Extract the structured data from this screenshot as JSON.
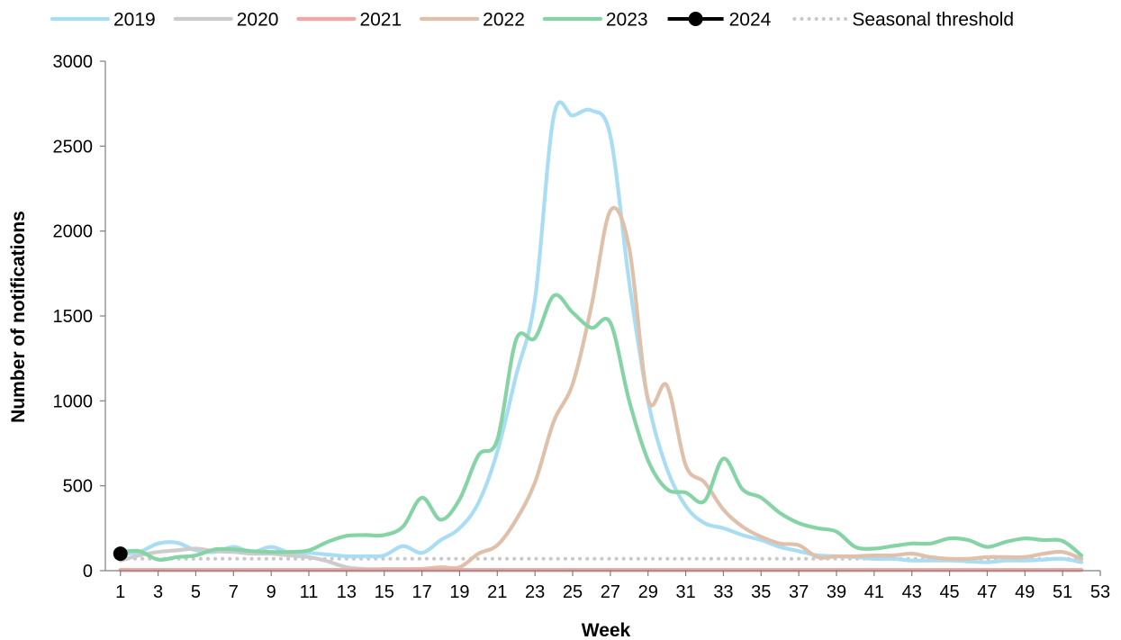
{
  "chart_data": {
    "type": "line",
    "xlabel": "Week",
    "ylabel": "Number of notifications",
    "xlim": [
      0.2,
      53
    ],
    "ylim": [
      0,
      3000
    ],
    "x_ticks": [
      1,
      3,
      5,
      7,
      9,
      11,
      13,
      15,
      17,
      19,
      21,
      23,
      25,
      27,
      29,
      31,
      33,
      35,
      37,
      39,
      41,
      43,
      45,
      47,
      49,
      51,
      53
    ],
    "y_ticks": [
      0,
      500,
      1000,
      1500,
      2000,
      2500,
      3000
    ],
    "grid": false,
    "legend_position": "top",
    "series": [
      {
        "name": "2019",
        "color": "#a9ddf3",
        "style": "solid",
        "weeks": [
          1,
          2,
          3,
          4,
          5,
          6,
          7,
          8,
          9,
          10,
          11,
          12,
          13,
          14,
          15,
          16,
          17,
          18,
          19,
          20,
          21,
          22,
          23,
          24,
          25,
          26,
          27,
          28,
          29,
          30,
          31,
          32,
          33,
          34,
          35,
          36,
          37,
          38,
          39,
          40,
          41,
          42,
          43,
          44,
          45,
          46,
          47,
          48,
          49,
          50,
          51,
          52
        ],
        "values": [
          100,
          110,
          160,
          165,
          120,
          110,
          140,
          110,
          140,
          105,
          105,
          95,
          85,
          85,
          90,
          145,
          105,
          180,
          250,
          400,
          700,
          1150,
          1600,
          2680,
          2680,
          2710,
          2560,
          1700,
          1000,
          600,
          380,
          280,
          250,
          210,
          180,
          140,
          115,
          90,
          85,
          80,
          70,
          70,
          60,
          60,
          60,
          55,
          50,
          60,
          60,
          65,
          70,
          50
        ]
      },
      {
        "name": "2020",
        "color": "#cccccc",
        "style": "solid",
        "weeks": [
          1,
          2,
          3,
          4,
          5,
          6,
          7,
          8,
          9,
          10,
          11,
          12,
          13,
          14,
          15,
          16,
          17,
          18,
          19,
          20,
          21,
          22,
          23,
          24,
          25,
          26,
          27,
          28,
          29,
          30,
          31,
          32,
          33,
          34,
          35,
          36,
          37,
          38,
          39,
          40,
          41,
          42,
          43,
          44,
          45,
          46,
          47,
          48,
          49,
          50,
          51,
          52
        ],
        "values": [
          60,
          90,
          110,
          120,
          130,
          115,
          110,
          100,
          100,
          90,
          80,
          55,
          20,
          10,
          10,
          10,
          10,
          5,
          5,
          5,
          5,
          5,
          5,
          5,
          5,
          5,
          5,
          5,
          5,
          5,
          5,
          5,
          5,
          5,
          5,
          5,
          5,
          5,
          5,
          5,
          5,
          5,
          5,
          5,
          5,
          5,
          5,
          5,
          5,
          5,
          5,
          5
        ]
      },
      {
        "name": "2021",
        "color": "#f4a5a5",
        "style": "solid",
        "weeks": [
          1,
          2,
          3,
          4,
          5,
          6,
          7,
          8,
          9,
          10,
          11,
          12,
          13,
          14,
          15,
          16,
          17,
          18,
          19,
          20,
          21,
          22,
          23,
          24,
          25,
          26,
          27,
          28,
          29,
          30,
          31,
          32,
          33,
          34,
          35,
          36,
          37,
          38,
          39,
          40,
          41,
          42,
          43,
          44,
          45,
          46,
          47,
          48,
          49,
          50,
          51,
          52
        ],
        "values": [
          3,
          3,
          3,
          3,
          3,
          3,
          3,
          3,
          3,
          3,
          3,
          3,
          3,
          3,
          3,
          3,
          3,
          3,
          3,
          3,
          3,
          3,
          3,
          3,
          3,
          3,
          3,
          3,
          3,
          3,
          3,
          3,
          3,
          3,
          3,
          3,
          3,
          3,
          3,
          3,
          3,
          3,
          3,
          3,
          3,
          3,
          3,
          3,
          3,
          3,
          3,
          3
        ]
      },
      {
        "name": "2022",
        "color": "#dfc0aa",
        "style": "solid",
        "weeks": [
          1,
          2,
          3,
          4,
          5,
          6,
          7,
          8,
          9,
          10,
          11,
          12,
          13,
          14,
          15,
          16,
          17,
          18,
          19,
          20,
          21,
          22,
          23,
          24,
          25,
          26,
          27,
          28,
          29,
          30,
          31,
          32,
          33,
          34,
          35,
          36,
          37,
          38,
          39,
          40,
          41,
          42,
          43,
          44,
          45,
          46,
          47,
          48,
          49,
          50,
          51,
          52
        ],
        "values": [
          5,
          5,
          5,
          5,
          5,
          5,
          5,
          5,
          5,
          5,
          5,
          5,
          5,
          5,
          5,
          5,
          10,
          20,
          20,
          100,
          150,
          300,
          520,
          880,
          1100,
          1560,
          2120,
          1900,
          1010,
          1090,
          620,
          520,
          360,
          260,
          200,
          160,
          150,
          80,
          85,
          85,
          90,
          90,
          100,
          80,
          70,
          70,
          80,
          80,
          80,
          100,
          110,
          70
        ]
      },
      {
        "name": "2023",
        "color": "#86d4a6",
        "style": "solid",
        "weeks": [
          1,
          2,
          3,
          4,
          5,
          6,
          7,
          8,
          9,
          10,
          11,
          12,
          13,
          14,
          15,
          16,
          17,
          18,
          19,
          20,
          21,
          22,
          23,
          24,
          25,
          26,
          27,
          28,
          29,
          30,
          31,
          32,
          33,
          34,
          35,
          36,
          37,
          38,
          39,
          40,
          41,
          42,
          43,
          44,
          45,
          46,
          47,
          48,
          49,
          50,
          51,
          52
        ],
        "values": [
          110,
          115,
          65,
          80,
          90,
          125,
          125,
          115,
          110,
          110,
          120,
          170,
          205,
          210,
          210,
          260,
          430,
          300,
          420,
          680,
          770,
          1360,
          1370,
          1620,
          1520,
          1430,
          1460,
          1000,
          650,
          480,
          460,
          410,
          660,
          480,
          430,
          340,
          280,
          250,
          230,
          140,
          130,
          145,
          160,
          160,
          190,
          180,
          140,
          170,
          190,
          180,
          175,
          90
        ]
      },
      {
        "name": "2024",
        "color": "#000000",
        "style": "marker",
        "weeks": [
          1
        ],
        "values": [
          100
        ]
      },
      {
        "name": "Seasonal threshold",
        "color": "#c9c9c9",
        "style": "dotted",
        "weeks": [
          1,
          52
        ],
        "values": [
          70,
          70
        ]
      }
    ]
  }
}
